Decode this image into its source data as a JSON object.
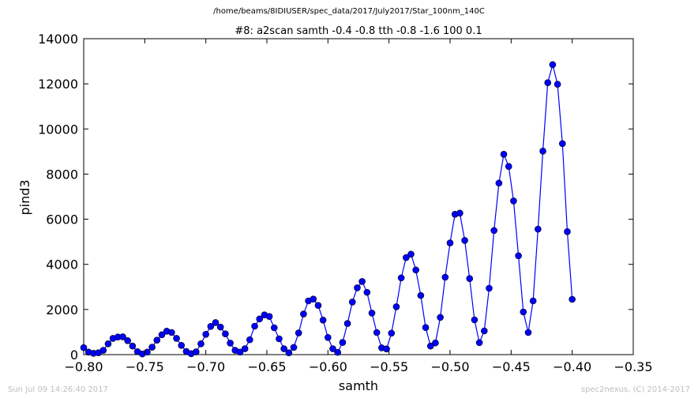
{
  "header": {
    "path": "/home/beams/8IDIUSER/spec_data/2017/July2017/Star_100nm_140C"
  },
  "footer": {
    "timestamp": "Sun Jul 09 14:26:40 2017",
    "credit": "spec2nexus, (C) 2014-2017"
  },
  "colors": {
    "series": "#0000ff",
    "axes": "#000000",
    "footer_text": "#bdbdbd"
  },
  "chart_data": {
    "type": "line",
    "title": "#8: a2scan  samth -0.4 -0.8  tth -0.8 -1.6  100 0.1",
    "xlabel": "samth",
    "ylabel": "pind3",
    "xlim": [
      -0.8,
      -0.35
    ],
    "ylim": [
      0,
      14000
    ],
    "xticks": [
      "−0.80",
      "−0.75",
      "−0.70",
      "−0.65",
      "−0.60",
      "−0.55",
      "−0.50",
      "−0.45",
      "−0.40",
      "−0.35"
    ],
    "xtick_values": [
      -0.8,
      -0.75,
      -0.7,
      -0.65,
      -0.6,
      -0.55,
      -0.5,
      -0.45,
      -0.4,
      -0.35
    ],
    "yticks": [
      "0",
      "2000",
      "4000",
      "6000",
      "8000",
      "10000",
      "12000",
      "14000"
    ],
    "ytick_values": [
      0,
      2000,
      4000,
      6000,
      8000,
      10000,
      12000,
      14000
    ],
    "marker": "circle",
    "grid": false,
    "series": [
      {
        "x": [
          -0.8,
          -0.796,
          -0.792,
          -0.788,
          -0.784,
          -0.78,
          -0.776,
          -0.772,
          -0.768,
          -0.764,
          -0.76,
          -0.756,
          -0.752,
          -0.748,
          -0.744,
          -0.74,
          -0.736,
          -0.732,
          -0.728,
          -0.724,
          -0.72,
          -0.716,
          -0.712,
          -0.708,
          -0.704,
          -0.7,
          -0.696,
          -0.692,
          -0.688,
          -0.684,
          -0.68,
          -0.676,
          -0.672,
          -0.668,
          -0.664,
          -0.66,
          -0.656,
          -0.652,
          -0.648,
          -0.644,
          -0.64,
          -0.636,
          -0.632,
          -0.628,
          -0.624,
          -0.62,
          -0.616,
          -0.612,
          -0.608,
          -0.604,
          -0.6,
          -0.596,
          -0.592,
          -0.588,
          -0.584,
          -0.58,
          -0.576,
          -0.572,
          -0.568,
          -0.564,
          -0.56,
          -0.556,
          -0.552,
          -0.548,
          -0.544,
          -0.54,
          -0.536,
          -0.532,
          -0.528,
          -0.524,
          -0.52,
          -0.516,
          -0.512,
          -0.508,
          -0.504,
          -0.5,
          -0.496,
          -0.492,
          -0.488,
          -0.484,
          -0.48,
          -0.476,
          -0.472,
          -0.468,
          -0.464,
          -0.46,
          -0.456,
          -0.452,
          -0.448,
          -0.444,
          -0.44,
          -0.436,
          -0.432,
          -0.428,
          -0.424,
          -0.42,
          -0.416,
          -0.412,
          -0.408,
          -0.404,
          -0.4
        ],
        "y": [
          310,
          110,
          60,
          80,
          190,
          480,
          720,
          780,
          790,
          620,
          380,
          130,
          30,
          110,
          330,
          640,
          880,
          1040,
          980,
          720,
          410,
          140,
          40,
          120,
          480,
          900,
          1250,
          1420,
          1220,
          920,
          510,
          190,
          110,
          260,
          660,
          1260,
          1580,
          1760,
          1690,
          1190,
          700,
          260,
          80,
          320,
          960,
          1800,
          2380,
          2460,
          2180,
          1530,
          760,
          260,
          100,
          540,
          1380,
          2330,
          2960,
          3240,
          2760,
          1840,
          980,
          300,
          250,
          950,
          2120,
          3400,
          4300,
          4450,
          3750,
          2620,
          1200,
          380,
          520,
          1650,
          3430,
          4950,
          6220,
          6270,
          5060,
          3370,
          1540,
          530,
          1050,
          2940,
          5500,
          7600,
          8880,
          8340,
          6810,
          4380,
          1890,
          980,
          2380,
          5560,
          9020,
          12050,
          12850,
          11980,
          9350,
          5450,
          2450
        ]
      }
    ]
  }
}
